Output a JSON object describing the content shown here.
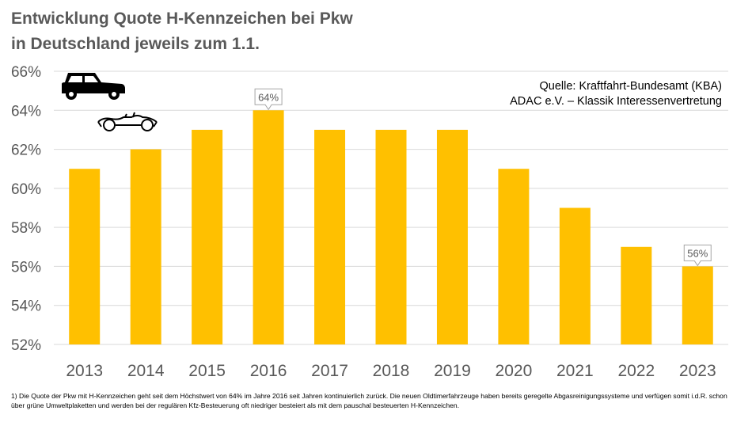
{
  "title": {
    "line1": "Entwicklung Quote H-Kennzeichen bei Pkw",
    "line2": "in Deutschland jeweils zum 1.1."
  },
  "source": {
    "line1": "Quelle: Kraftfahrt-Bundesamt (KBA)",
    "line2": "ADAC e.V. – Klassik Interessenvertretung"
  },
  "icons": [
    "car-icon",
    "vintage-car-icon"
  ],
  "footnote": "1)  Die Quote der Pkw mit H-Kennzeichen geht seit dem Höchstwert von 64% im Jahre 2016 seit Jahren kontinuierlich zurück. Die neuen Oldtimerfahrzeuge haben bereits geregelte Abgasreinigungssysteme und verfügen somit i.d.R. schon über grüne Umweltplaketten und werden bei der regulären Kfz-Besteuerung oft niedriger besteiert als mit dem pauschal besteuerten H-Kennzeichen.",
  "colors": {
    "bar": "#FFC000",
    "grid": "#D9D9D9",
    "axis_text": "#595959"
  },
  "chart_data": {
    "type": "bar",
    "categories": [
      "2013",
      "2014",
      "2015",
      "2016",
      "2017",
      "2018",
      "2019",
      "2020",
      "2021",
      "2022",
      "2023"
    ],
    "values": [
      61,
      62,
      63,
      64,
      63,
      63,
      63,
      61,
      59,
      57,
      56
    ],
    "unit": "%",
    "ylim": [
      52,
      66
    ],
    "yticks": [
      "52%",
      "54%",
      "56%",
      "58%",
      "60%",
      "62%",
      "64%",
      "66%"
    ],
    "ytick_values": [
      52,
      54,
      56,
      58,
      60,
      62,
      64,
      66
    ],
    "grid": true,
    "callouts": [
      {
        "category": "2016",
        "label": "64%"
      },
      {
        "category": "2023",
        "label": "56%"
      }
    ]
  }
}
